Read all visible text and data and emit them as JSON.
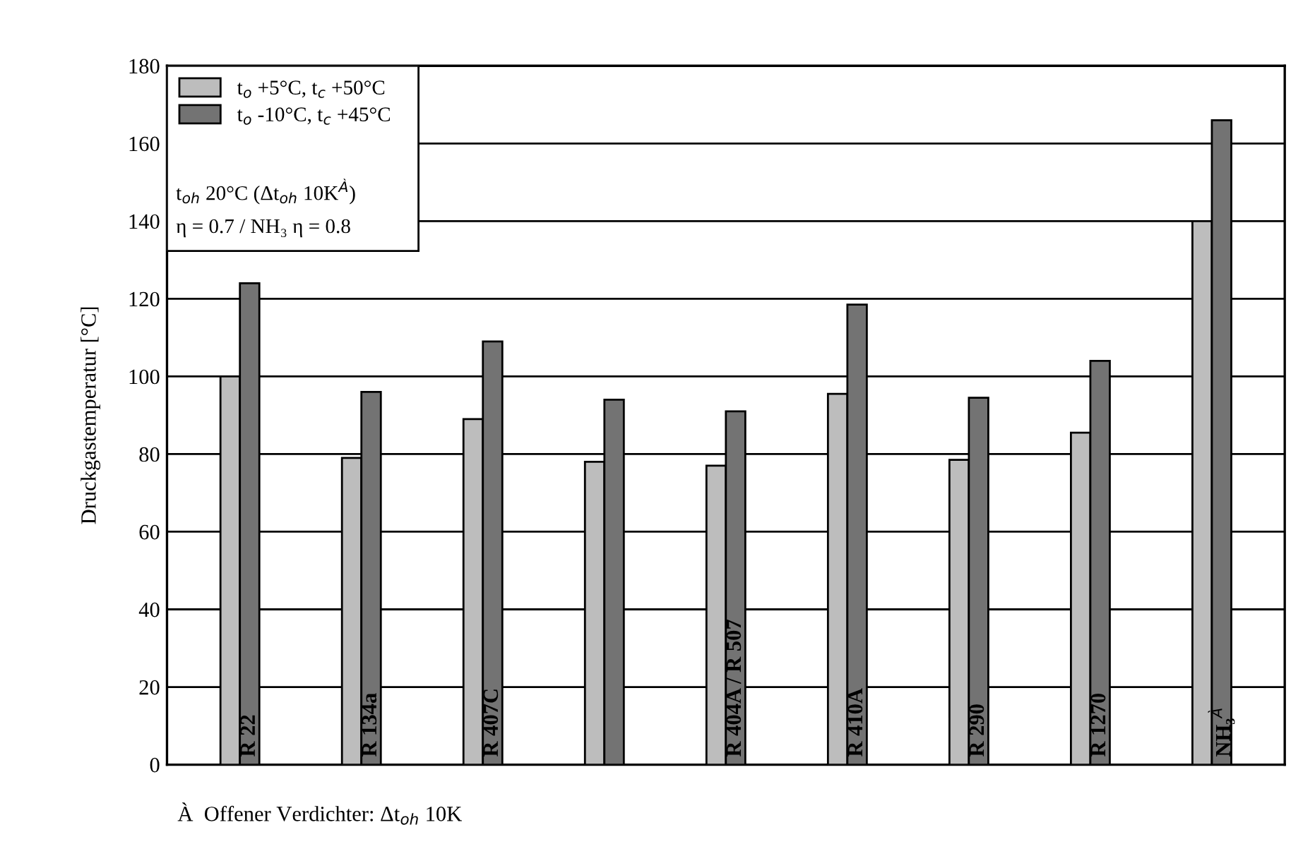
{
  "chart_data": {
    "type": "bar",
    "categories": [
      "R 22",
      "R 134a",
      "R 407C",
      null,
      "R 404A / R 507",
      "R 410A",
      "R 290",
      "R 1270",
      "NH₃$^{À}$"
    ],
    "series": [
      {
        "name": "t$_{o}$ +5°C, t$_{c}$ +50°C",
        "color": "#bdbdbd",
        "values": [
          100,
          79,
          89,
          78,
          77,
          95.5,
          78.5,
          85.5,
          140
        ]
      },
      {
        "name": "t$_{o}$ -10°C, t$_{c}$ +45°C",
        "color": "#737373",
        "values": [
          124,
          96,
          109,
          94,
          91,
          118.5,
          94.5,
          104,
          166
        ]
      }
    ],
    "ylabel": "Druckgastemperatur [°C]",
    "ylim": [
      0,
      180
    ],
    "yticks": [
      0,
      20,
      40,
      60,
      80,
      100,
      120,
      140,
      160,
      180
    ],
    "grid": "y",
    "legend": "top left",
    "annotations": [
      "t$_{oh}$ 20°C (Δt$_{oh}$ 10K$^{À}$)",
      "η = 0.7 / NH₃ η = 0.8",
      "À  Offener Verdichter: Δt$_{oh}$ 10K"
    ]
  }
}
